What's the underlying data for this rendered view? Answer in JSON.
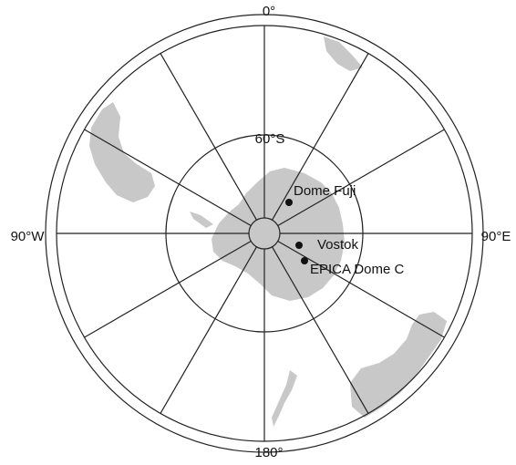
{
  "map": {
    "axis_labels": {
      "top": "0°",
      "left": "90°W",
      "right": "90°E",
      "bottom": "180°"
    },
    "latitude_label": "60°S",
    "sites": [
      {
        "name": "Dome Fuji"
      },
      {
        "name": "Vostok"
      },
      {
        "name": "EPICA Dome C"
      }
    ]
  }
}
